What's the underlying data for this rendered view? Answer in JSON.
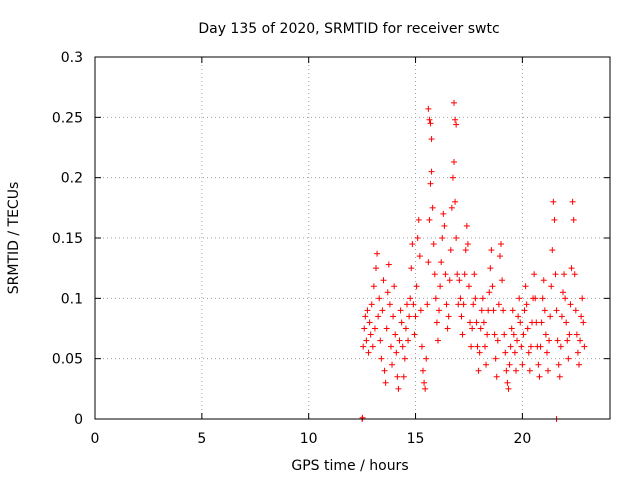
{
  "chart_data": {
    "type": "scatter",
    "title": "Day 135 of 2020, SRMTID for receiver swtc",
    "xlabel": "GPS time / hours",
    "ylabel": "SRMTID / TECUs",
    "xlim": [
      0,
      24.1
    ],
    "ylim": [
      0,
      0.3
    ],
    "x_ticks": [
      0,
      5,
      10,
      15,
      20
    ],
    "x_tick_labels": [
      "0",
      "5",
      "10",
      "15",
      "20"
    ],
    "y_ticks": [
      0,
      0.05,
      0.1,
      0.15,
      0.2,
      0.25,
      0.3
    ],
    "y_tick_labels": [
      "0",
      "0.05",
      "0.1",
      "0.15",
      "0.2",
      "0.25",
      "0.3"
    ],
    "grid": true,
    "marker": "+",
    "series": [
      {
        "name": "SRMTID",
        "color": "#ff0000",
        "points": [
          [
            12.5,
            0.0
          ],
          [
            12.52,
            0.001
          ],
          [
            21.6,
            0.0
          ],
          [
            12.55,
            0.06
          ],
          [
            12.6,
            0.075
          ],
          [
            12.65,
            0.085
          ],
          [
            12.7,
            0.065
          ],
          [
            12.75,
            0.09
          ],
          [
            12.8,
            0.055
          ],
          [
            12.85,
            0.08
          ],
          [
            12.9,
            0.07
          ],
          [
            12.95,
            0.095
          ],
          [
            13.0,
            0.06
          ],
          [
            13.05,
            0.11
          ],
          [
            13.1,
            0.075
          ],
          [
            13.15,
            0.125
          ],
          [
            13.2,
            0.137
          ],
          [
            13.25,
            0.085
          ],
          [
            13.3,
            0.1
          ],
          [
            13.35,
            0.065
          ],
          [
            13.4,
            0.05
          ],
          [
            13.45,
            0.09
          ],
          [
            13.5,
            0.115
          ],
          [
            13.55,
            0.04
          ],
          [
            13.6,
            0.03
          ],
          [
            13.65,
            0.075
          ],
          [
            13.7,
            0.105
          ],
          [
            13.75,
            0.128
          ],
          [
            13.8,
            0.095
          ],
          [
            13.85,
            0.06
          ],
          [
            13.9,
            0.045
          ],
          [
            13.95,
            0.085
          ],
          [
            14.0,
            0.11
          ],
          [
            14.05,
            0.07
          ],
          [
            14.1,
            0.055
          ],
          [
            14.15,
            0.035
          ],
          [
            14.2,
            0.025
          ],
          [
            14.25,
            0.065
          ],
          [
            14.3,
            0.09
          ],
          [
            14.35,
            0.08
          ],
          [
            14.4,
            0.06
          ],
          [
            14.45,
            0.035
          ],
          [
            14.5,
            0.05
          ],
          [
            14.55,
            0.075
          ],
          [
            14.6,
            0.095
          ],
          [
            14.65,
            0.065
          ],
          [
            14.7,
            0.085
          ],
          [
            14.75,
            0.1
          ],
          [
            14.8,
            0.125
          ],
          [
            14.85,
            0.145
          ],
          [
            14.9,
            0.095
          ],
          [
            14.95,
            0.07
          ],
          [
            15.0,
            0.085
          ],
          [
            15.05,
            0.11
          ],
          [
            15.1,
            0.15
          ],
          [
            15.15,
            0.165
          ],
          [
            15.2,
            0.135
          ],
          [
            15.25,
            0.09
          ],
          [
            15.3,
            0.06
          ],
          [
            15.35,
            0.04
          ],
          [
            15.4,
            0.03
          ],
          [
            15.45,
            0.025
          ],
          [
            15.5,
            0.05
          ],
          [
            15.55,
            0.095
          ],
          [
            15.6,
            0.13
          ],
          [
            15.65,
            0.165
          ],
          [
            15.7,
            0.195
          ],
          [
            15.75,
            0.205
          ],
          [
            15.8,
            0.175
          ],
          [
            15.85,
            0.145
          ],
          [
            15.9,
            0.12
          ],
          [
            15.95,
            0.1
          ],
          [
            16.0,
            0.08
          ],
          [
            16.05,
            0.065
          ],
          [
            16.1,
            0.09
          ],
          [
            16.15,
            0.11
          ],
          [
            16.2,
            0.13
          ],
          [
            16.25,
            0.15
          ],
          [
            16.3,
            0.17
          ],
          [
            16.35,
            0.16
          ],
          [
            16.4,
            0.12
          ],
          [
            16.45,
            0.095
          ],
          [
            16.5,
            0.075
          ],
          [
            16.55,
            0.085
          ],
          [
            16.6,
            0.115
          ],
          [
            16.65,
            0.14
          ],
          [
            16.7,
            0.175
          ],
          [
            16.75,
            0.2
          ],
          [
            16.8,
            0.213
          ],
          [
            16.85,
            0.18
          ],
          [
            16.9,
            0.15
          ],
          [
            16.95,
            0.12
          ],
          [
            17.0,
            0.095
          ],
          [
            17.05,
            0.115
          ],
          [
            17.1,
            0.1
          ],
          [
            17.15,
            0.085
          ],
          [
            17.2,
            0.07
          ],
          [
            17.25,
            0.095
          ],
          [
            17.3,
            0.12
          ],
          [
            17.35,
            0.14
          ],
          [
            17.4,
            0.16
          ],
          [
            17.45,
            0.145
          ],
          [
            17.5,
            0.11
          ],
          [
            17.55,
            0.08
          ],
          [
            17.6,
            0.06
          ],
          [
            17.65,
            0.075
          ],
          [
            17.7,
            0.095
          ],
          [
            17.75,
            0.12
          ],
          [
            17.8,
            0.1
          ],
          [
            17.85,
            0.08
          ],
          [
            17.9,
            0.06
          ],
          [
            17.95,
            0.04
          ],
          [
            18.0,
            0.055
          ],
          [
            18.05,
            0.075
          ],
          [
            18.1,
            0.09
          ],
          [
            18.15,
            0.1
          ],
          [
            18.2,
            0.08
          ],
          [
            18.25,
            0.06
          ],
          [
            18.3,
            0.045
          ],
          [
            18.35,
            0.07
          ],
          [
            18.4,
            0.09
          ],
          [
            18.45,
            0.105
          ],
          [
            18.5,
            0.125
          ],
          [
            18.55,
            0.14
          ],
          [
            18.6,
            0.11
          ],
          [
            18.65,
            0.09
          ],
          [
            18.7,
            0.07
          ],
          [
            18.75,
            0.05
          ],
          [
            18.8,
            0.035
          ],
          [
            18.85,
            0.065
          ],
          [
            18.9,
            0.095
          ],
          [
            18.95,
            0.135
          ],
          [
            19.0,
            0.145
          ],
          [
            19.05,
            0.115
          ],
          [
            19.1,
            0.09
          ],
          [
            19.15,
            0.07
          ],
          [
            19.2,
            0.055
          ],
          [
            19.25,
            0.04
          ],
          [
            19.3,
            0.03
          ],
          [
            19.35,
            0.025
          ],
          [
            19.4,
            0.045
          ],
          [
            19.45,
            0.06
          ],
          [
            19.5,
            0.075
          ],
          [
            19.55,
            0.09
          ],
          [
            19.6,
            0.07
          ],
          [
            19.65,
            0.055
          ],
          [
            19.7,
            0.04
          ],
          [
            19.75,
            0.065
          ],
          [
            19.8,
            0.085
          ],
          [
            19.85,
            0.1
          ],
          [
            19.9,
            0.08
          ],
          [
            19.95,
            0.06
          ],
          [
            20.0,
            0.045
          ],
          [
            20.05,
            0.07
          ],
          [
            20.1,
            0.09
          ],
          [
            20.15,
            0.11
          ],
          [
            20.2,
            0.095
          ],
          [
            20.25,
            0.075
          ],
          [
            20.3,
            0.055
          ],
          [
            20.35,
            0.04
          ],
          [
            20.4,
            0.06
          ],
          [
            20.45,
            0.08
          ],
          [
            20.5,
            0.1
          ],
          [
            20.55,
            0.12
          ],
          [
            20.6,
            0.1
          ],
          [
            20.65,
            0.08
          ],
          [
            20.7,
            0.06
          ],
          [
            20.75,
            0.045
          ],
          [
            20.8,
            0.035
          ],
          [
            20.85,
            0.06
          ],
          [
            20.9,
            0.08
          ],
          [
            20.95,
            0.1
          ],
          [
            21.0,
            0.115
          ],
          [
            21.05,
            0.09
          ],
          [
            21.1,
            0.07
          ],
          [
            21.15,
            0.055
          ],
          [
            21.2,
            0.04
          ],
          [
            21.25,
            0.065
          ],
          [
            21.3,
            0.085
          ],
          [
            21.35,
            0.11
          ],
          [
            21.4,
            0.14
          ],
          [
            21.45,
            0.18
          ],
          [
            21.5,
            0.165
          ],
          [
            21.55,
            0.12
          ],
          [
            21.6,
            0.09
          ],
          [
            21.65,
            0.065
          ],
          [
            21.7,
            0.045
          ],
          [
            21.75,
            0.035
          ],
          [
            21.8,
            0.06
          ],
          [
            21.85,
            0.085
          ],
          [
            21.9,
            0.105
          ],
          [
            21.95,
            0.12
          ],
          [
            22.0,
            0.1
          ],
          [
            22.05,
            0.08
          ],
          [
            22.1,
            0.065
          ],
          [
            22.15,
            0.05
          ],
          [
            22.2,
            0.07
          ],
          [
            22.25,
            0.095
          ],
          [
            22.3,
            0.125
          ],
          [
            22.35,
            0.18
          ],
          [
            22.4,
            0.165
          ],
          [
            22.45,
            0.12
          ],
          [
            22.5,
            0.09
          ],
          [
            22.55,
            0.07
          ],
          [
            22.6,
            0.055
          ],
          [
            22.65,
            0.045
          ],
          [
            22.7,
            0.065
          ],
          [
            22.75,
            0.085
          ],
          [
            22.8,
            0.1
          ],
          [
            22.85,
            0.08
          ],
          [
            22.9,
            0.06
          ],
          [
            15.6,
            0.257
          ],
          [
            15.65,
            0.248
          ],
          [
            15.7,
            0.245
          ],
          [
            15.75,
            0.232
          ],
          [
            16.8,
            0.262
          ],
          [
            16.85,
            0.248
          ],
          [
            16.9,
            0.244
          ]
        ]
      }
    ]
  }
}
